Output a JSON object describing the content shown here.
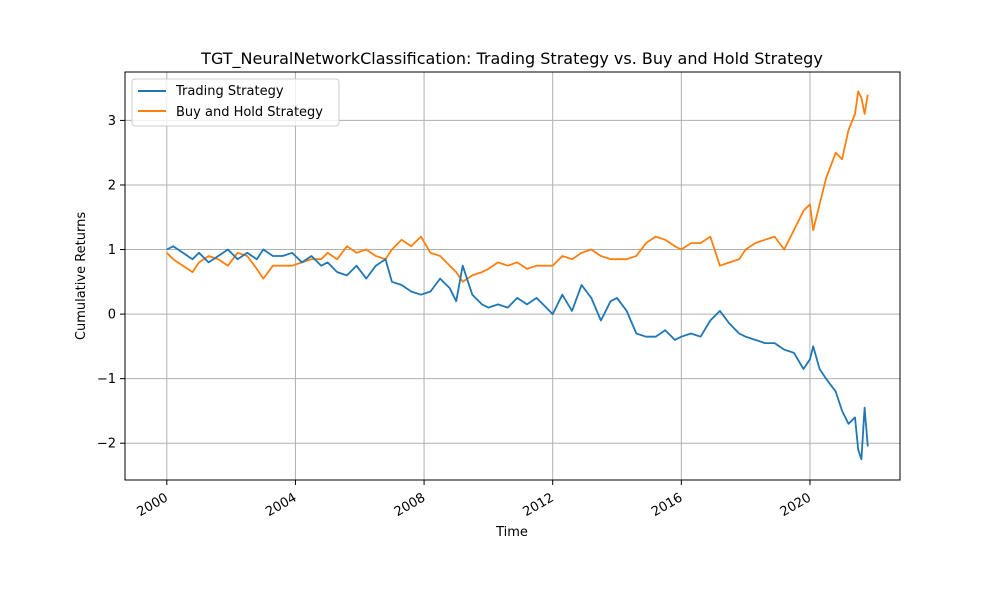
{
  "chart_data": {
    "type": "line",
    "title": "TGT_NeuralNetworkClassification: Trading Strategy vs. Buy and Hold Strategy",
    "xlabel": "Time",
    "ylabel": "Cumulative Returns",
    "x_ticks": [
      2000,
      2004,
      2008,
      2012,
      2016,
      2020
    ],
    "x_tick_labels": [
      "2000",
      "2004",
      "2008",
      "2012",
      "2016",
      "2020"
    ],
    "y_ticks": [
      -2,
      -1,
      0,
      1,
      2,
      3
    ],
    "y_tick_labels": [
      "−2",
      "−1",
      "0",
      "1",
      "2",
      "3"
    ],
    "xlim": [
      1998.7,
      2022.8
    ],
    "ylim": [
      -2.57,
      3.75
    ],
    "grid": true,
    "legend_position": "top-left",
    "series": [
      {
        "name": "Trading Strategy",
        "color": "#1f77b4",
        "x": [
          2000.0,
          2000.2,
          2000.5,
          2000.8,
          2001.0,
          2001.3,
          2001.6,
          2001.9,
          2002.2,
          2002.5,
          2002.8,
          2003.0,
          2003.3,
          2003.6,
          2003.9,
          2004.2,
          2004.5,
          2004.8,
          2005.0,
          2005.3,
          2005.6,
          2005.9,
          2006.2,
          2006.5,
          2006.8,
          2007.0,
          2007.3,
          2007.6,
          2007.9,
          2008.2,
          2008.5,
          2008.8,
          2009.0,
          2009.2,
          2009.5,
          2009.8,
          2010.0,
          2010.3,
          2010.6,
          2010.9,
          2011.2,
          2011.5,
          2011.8,
          2012.0,
          2012.3,
          2012.6,
          2012.9,
          2013.2,
          2013.5,
          2013.8,
          2014.0,
          2014.3,
          2014.6,
          2014.9,
          2015.2,
          2015.5,
          2015.8,
          2016.0,
          2016.3,
          2016.6,
          2016.9,
          2017.2,
          2017.5,
          2017.8,
          2018.0,
          2018.3,
          2018.6,
          2018.9,
          2019.2,
          2019.5,
          2019.8,
          2020.0,
          2020.1,
          2020.3,
          2020.5,
          2020.8,
          2021.0,
          2021.2,
          2021.4,
          2021.5,
          2021.6,
          2021.7,
          2021.8
        ],
        "y": [
          1.0,
          1.05,
          0.95,
          0.85,
          0.95,
          0.8,
          0.9,
          1.0,
          0.85,
          0.95,
          0.85,
          1.0,
          0.9,
          0.9,
          0.95,
          0.8,
          0.9,
          0.75,
          0.8,
          0.65,
          0.6,
          0.75,
          0.55,
          0.75,
          0.85,
          0.5,
          0.45,
          0.35,
          0.3,
          0.35,
          0.55,
          0.4,
          0.2,
          0.75,
          0.3,
          0.15,
          0.1,
          0.15,
          0.1,
          0.25,
          0.15,
          0.25,
          0.1,
          0.0,
          0.3,
          0.05,
          0.45,
          0.25,
          -0.1,
          0.2,
          0.25,
          0.05,
          -0.3,
          -0.35,
          -0.35,
          -0.25,
          -0.4,
          -0.35,
          -0.3,
          -0.35,
          -0.1,
          0.05,
          -0.15,
          -0.3,
          -0.35,
          -0.4,
          -0.45,
          -0.45,
          -0.55,
          -0.6,
          -0.85,
          -0.7,
          -0.5,
          -0.85,
          -1.0,
          -1.2,
          -1.5,
          -1.7,
          -1.6,
          -2.1,
          -2.25,
          -1.45,
          -2.05
        ]
      },
      {
        "name": "Buy and Hold Strategy",
        "color": "#ff7f0e",
        "x": [
          2000.0,
          2000.2,
          2000.5,
          2000.8,
          2001.0,
          2001.3,
          2001.6,
          2001.9,
          2002.2,
          2002.5,
          2002.8,
          2003.0,
          2003.3,
          2003.6,
          2003.9,
          2004.2,
          2004.5,
          2004.8,
          2005.0,
          2005.3,
          2005.6,
          2005.9,
          2006.2,
          2006.5,
          2006.8,
          2007.0,
          2007.3,
          2007.6,
          2007.9,
          2008.2,
          2008.5,
          2008.8,
          2009.0,
          2009.2,
          2009.5,
          2009.8,
          2010.0,
          2010.3,
          2010.6,
          2010.9,
          2011.2,
          2011.5,
          2011.8,
          2012.0,
          2012.3,
          2012.6,
          2012.9,
          2013.2,
          2013.5,
          2013.8,
          2014.0,
          2014.3,
          2014.6,
          2014.9,
          2015.2,
          2015.5,
          2015.8,
          2016.0,
          2016.3,
          2016.6,
          2016.9,
          2017.2,
          2017.5,
          2017.8,
          2018.0,
          2018.3,
          2018.6,
          2018.9,
          2019.2,
          2019.5,
          2019.8,
          2020.0,
          2020.1,
          2020.3,
          2020.5,
          2020.8,
          2021.0,
          2021.2,
          2021.4,
          2021.5,
          2021.6,
          2021.7,
          2021.8
        ],
        "y": [
          0.95,
          0.85,
          0.75,
          0.65,
          0.8,
          0.9,
          0.85,
          0.75,
          0.95,
          0.9,
          0.7,
          0.55,
          0.75,
          0.75,
          0.75,
          0.8,
          0.85,
          0.85,
          0.95,
          0.85,
          1.05,
          0.95,
          1.0,
          0.9,
          0.85,
          1.0,
          1.15,
          1.05,
          1.2,
          0.95,
          0.9,
          0.75,
          0.65,
          0.5,
          0.6,
          0.65,
          0.7,
          0.8,
          0.75,
          0.8,
          0.7,
          0.75,
          0.75,
          0.75,
          0.9,
          0.85,
          0.95,
          1.0,
          0.9,
          0.85,
          0.85,
          0.85,
          0.9,
          1.1,
          1.2,
          1.15,
          1.05,
          1.0,
          1.1,
          1.1,
          1.2,
          0.75,
          0.8,
          0.85,
          1.0,
          1.1,
          1.15,
          1.2,
          1.0,
          1.3,
          1.6,
          1.7,
          1.3,
          1.7,
          2.1,
          2.5,
          2.4,
          2.85,
          3.1,
          3.45,
          3.35,
          3.1,
          3.4
        ]
      }
    ]
  }
}
